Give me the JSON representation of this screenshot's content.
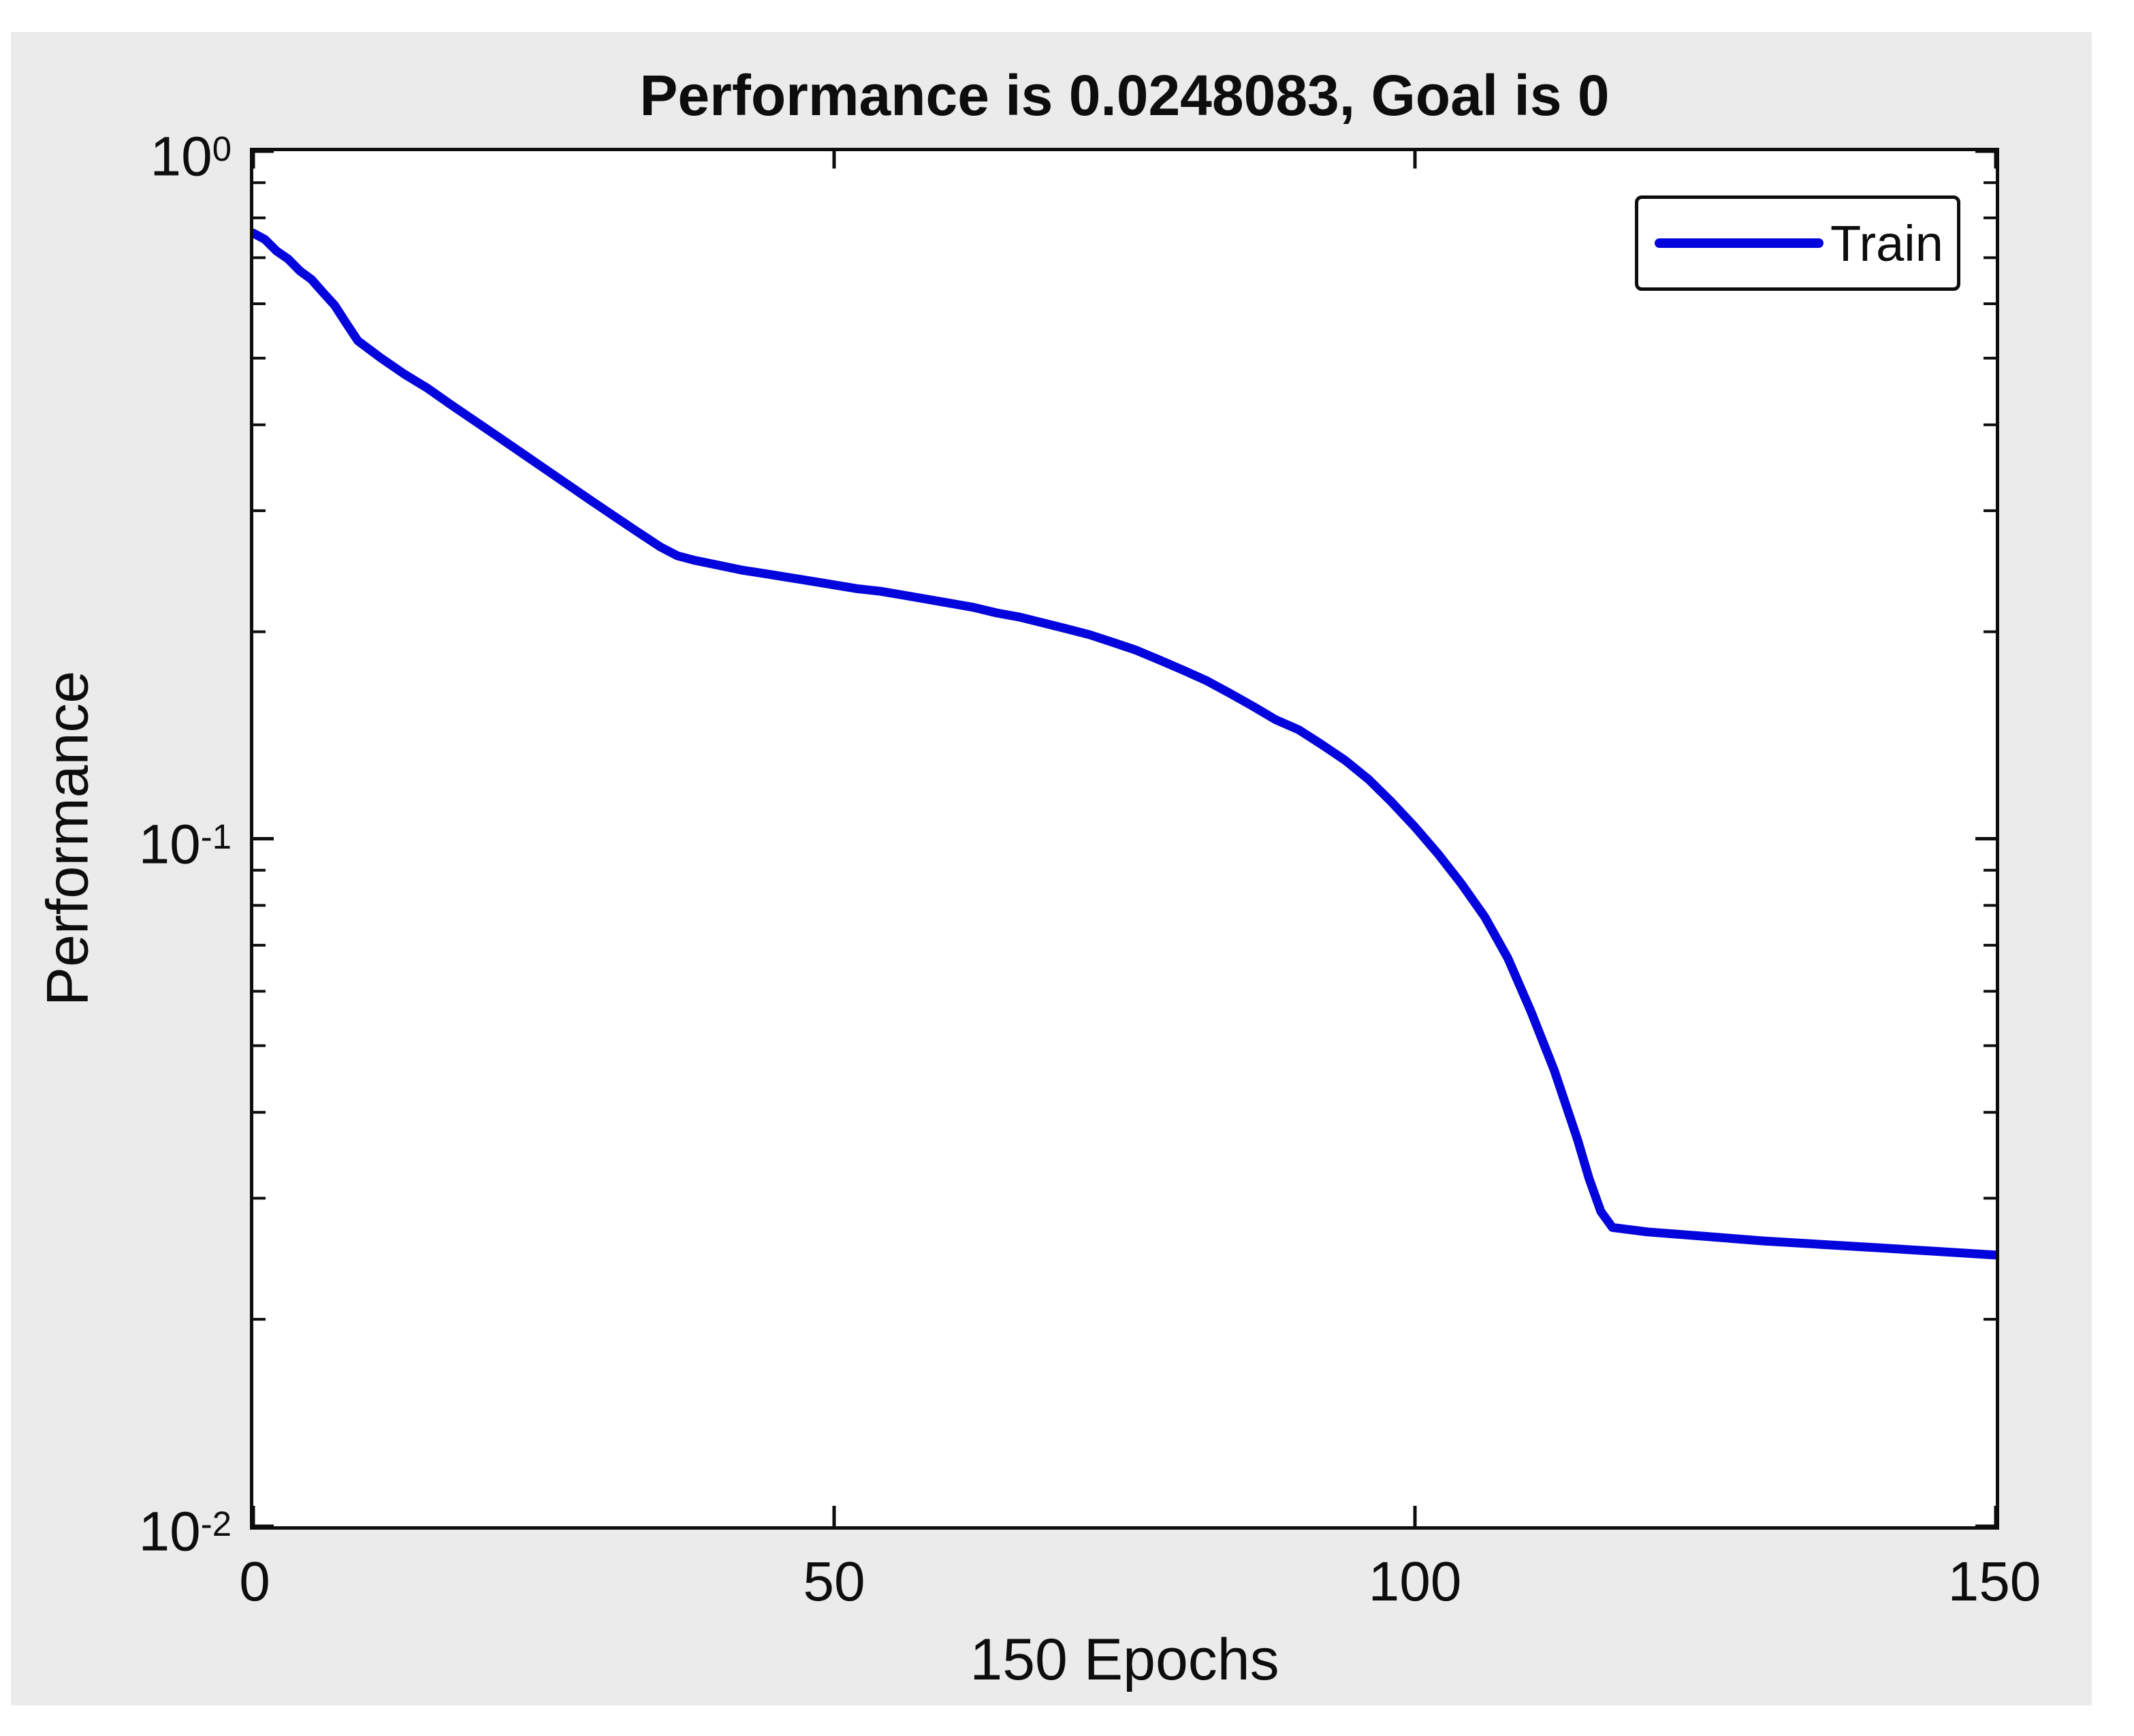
{
  "window": {
    "background_color": "#ffffff",
    "panel_color": "#ebebeb",
    "axis_color": "#0d0d0d",
    "plot_background": "#ffffff"
  },
  "figure": {
    "title": "Performance is 0.0248083, Goal is 0",
    "y_axis_label": "Performance",
    "x_axis_label": "150 Epochs"
  },
  "chart_data": {
    "type": "line",
    "title": "Performance is 0.0248083, Goal is 0",
    "xlabel": "150 Epochs",
    "ylabel": "Performance",
    "x_scale": "linear",
    "y_scale": "log",
    "xlim": [
      0,
      150
    ],
    "ylim": [
      0.01,
      1
    ],
    "grid": false,
    "legend_position": "top-right",
    "final_performance": "0.0248083",
    "goal": "0",
    "x_ticks": [
      0,
      50,
      100,
      150
    ],
    "x_tick_labels": [
      "0",
      "50",
      "100",
      "150"
    ],
    "y_ticks": [
      1,
      0.1,
      0.01
    ],
    "y_tick_labels": [
      {
        "base": "10",
        "exp": "0"
      },
      {
        "base": "10",
        "exp": "-1"
      },
      {
        "base": "10",
        "exp": "-2"
      }
    ],
    "series": [
      {
        "name": "Train",
        "color": "#0404dd",
        "line_width": 13,
        "points": [
          [
            0,
            0.76
          ],
          [
            1,
            0.744
          ],
          [
            2,
            0.716
          ],
          [
            3,
            0.697
          ],
          [
            4,
            0.67
          ],
          [
            5,
            0.651
          ],
          [
            6,
            0.623
          ],
          [
            7,
            0.597
          ],
          [
            8,
            0.562
          ],
          [
            9,
            0.53
          ],
          [
            11,
            0.5
          ],
          [
            13,
            0.474
          ],
          [
            15,
            0.452
          ],
          [
            17,
            0.428
          ],
          [
            19,
            0.406
          ],
          [
            21,
            0.385
          ],
          [
            23,
            0.365
          ],
          [
            25,
            0.346
          ],
          [
            27,
            0.328
          ],
          [
            29,
            0.311
          ],
          [
            31,
            0.295
          ],
          [
            33,
            0.28
          ],
          [
            35,
            0.266
          ],
          [
            36.5,
            0.258
          ],
          [
            38,
            0.254
          ],
          [
            40,
            0.25
          ],
          [
            42,
            0.246
          ],
          [
            44,
            0.243
          ],
          [
            46,
            0.24
          ],
          [
            48,
            0.237
          ],
          [
            50,
            0.234
          ],
          [
            52,
            0.231
          ],
          [
            54,
            0.229
          ],
          [
            56,
            0.226
          ],
          [
            58,
            0.223
          ],
          [
            60,
            0.22
          ],
          [
            62,
            0.217
          ],
          [
            64,
            0.213
          ],
          [
            66,
            0.21
          ],
          [
            68,
            0.206
          ],
          [
            70,
            0.202
          ],
          [
            72,
            0.198
          ],
          [
            74,
            0.193
          ],
          [
            76,
            0.188
          ],
          [
            78,
            0.182
          ],
          [
            80,
            0.176
          ],
          [
            82,
            0.17
          ],
          [
            84,
            0.163
          ],
          [
            86,
            0.156
          ],
          [
            88,
            0.149
          ],
          [
            90,
            0.144
          ],
          [
            92,
            0.137
          ],
          [
            94,
            0.13
          ],
          [
            96,
            0.122
          ],
          [
            98,
            0.113
          ],
          [
            100,
            0.104
          ],
          [
            102,
            0.095
          ],
          [
            104,
            0.086
          ],
          [
            106,
            0.077
          ],
          [
            108,
            0.067
          ],
          [
            110,
            0.056
          ],
          [
            112,
            0.046
          ],
          [
            114,
            0.0365
          ],
          [
            115,
            0.032
          ],
          [
            116,
            0.0287
          ],
          [
            117,
            0.0272
          ],
          [
            120,
            0.0268
          ],
          [
            125,
            0.0264
          ],
          [
            130,
            0.026
          ],
          [
            135,
            0.0257
          ],
          [
            140,
            0.0254
          ],
          [
            145,
            0.0251
          ],
          [
            150,
            0.0248
          ]
        ]
      }
    ]
  }
}
